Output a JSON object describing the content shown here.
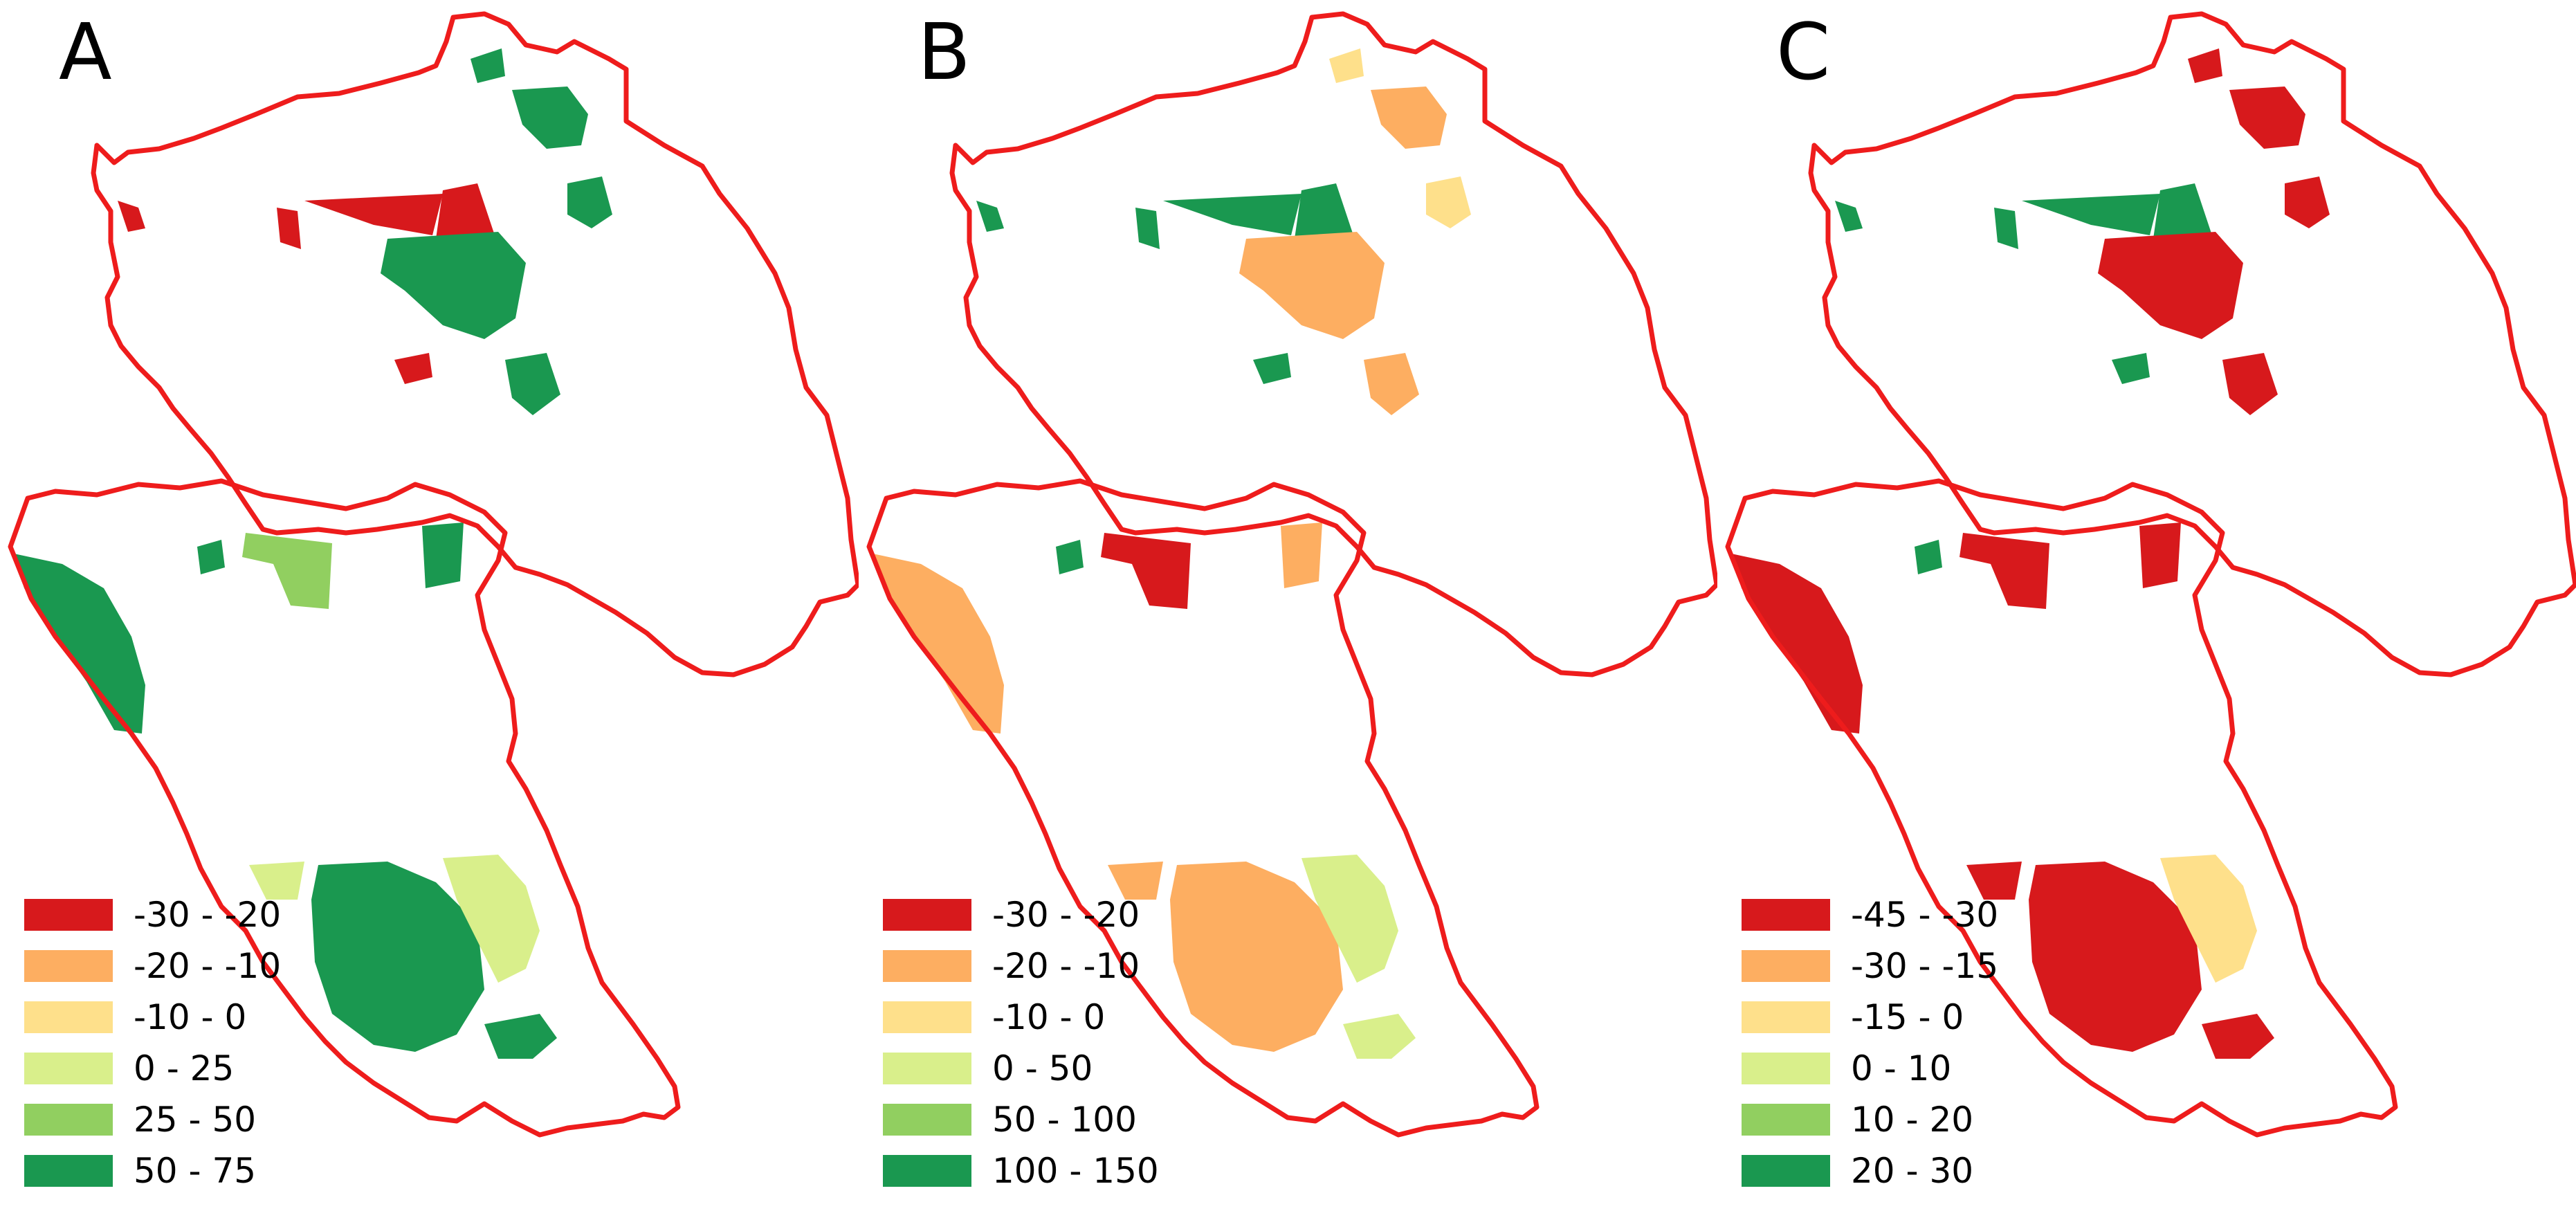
{
  "panels": [
    {
      "letter": "A",
      "legend": [
        {
          "label": "-30 - -20",
          "color": "#d7191c"
        },
        {
          "label": "-20 - -10",
          "color": "#fdae61"
        },
        {
          "label": "-10 - 0",
          "color": "#fee08b"
        },
        {
          "label": "0 - 25",
          "color": "#d9ef8b"
        },
        {
          "label": "25 - 50",
          "color": "#91cf60"
        },
        {
          "label": "50 - 75",
          "color": "#1a9850"
        }
      ]
    },
    {
      "letter": "B",
      "legend": [
        {
          "label": "-30 - -20",
          "color": "#d7191c"
        },
        {
          "label": "-20 - -10",
          "color": "#fdae61"
        },
        {
          "label": "-10 - 0",
          "color": "#fee08b"
        },
        {
          "label": "0 - 50",
          "color": "#d9ef8b"
        },
        {
          "label": "50 - 100",
          "color": "#91cf60"
        },
        {
          "label": "100 - 150",
          "color": "#1a9850"
        }
      ]
    },
    {
      "letter": "C",
      "legend": [
        {
          "label": "-45 - -30",
          "color": "#d7191c"
        },
        {
          "label": "-30 - -15",
          "color": "#fdae61"
        },
        {
          "label": "-15 - 0",
          "color": "#fee08b"
        },
        {
          "label": "0 - 10",
          "color": "#d9ef8b"
        },
        {
          "label": "10 - 20",
          "color": "#91cf60"
        },
        {
          "label": "20 - 30",
          "color": "#1a9850"
        }
      ]
    }
  ],
  "map_colors": {
    "boundary": "#ee1c1c",
    "red": "#d7191c",
    "orange": "#fdae61",
    "yellow": "#fee08b",
    "lightgreen": "#d9ef8b",
    "green": "#91cf60",
    "darkgreen": "#1a9850"
  },
  "parcel_classes": {
    "A": {
      "p1": "darkgreen",
      "p2": "darkgreen",
      "p3": "darkgreen",
      "p4": "red",
      "p5": "red",
      "p6": "darkgreen",
      "p7": "red",
      "p8": "red",
      "p9": "darkgreen",
      "p10": "red",
      "p11": "green",
      "p12": "darkgreen",
      "p13": "darkgreen",
      "p14": "darkgreen",
      "p15": "lightgreen",
      "p16": "lightgreen",
      "p17": "darkgreen",
      "p18": "darkgreen"
    },
    "B": {
      "p1": "yellow",
      "p2": "orange",
      "p3": "yellow",
      "p4": "darkgreen",
      "p5": "darkgreen",
      "p6": "orange",
      "p7": "darkgreen",
      "p8": "darkgreen",
      "p9": "orange",
      "p10": "darkgreen",
      "p11": "red",
      "p12": "orange",
      "p13": "orange",
      "p14": "orange",
      "p15": "lightgreen",
      "p16": "orange",
      "p17": "darkgreen",
      "p18": "lightgreen"
    },
    "C": {
      "p1": "red",
      "p2": "red",
      "p3": "red",
      "p4": "darkgreen",
      "p5": "darkgreen",
      "p6": "red",
      "p7": "darkgreen",
      "p8": "darkgreen",
      "p9": "red",
      "p10": "darkgreen",
      "p11": "red",
      "p12": "red",
      "p13": "red",
      "p14": "red",
      "p15": "yellow",
      "p16": "red",
      "p17": "darkgreen",
      "p18": "red"
    }
  }
}
